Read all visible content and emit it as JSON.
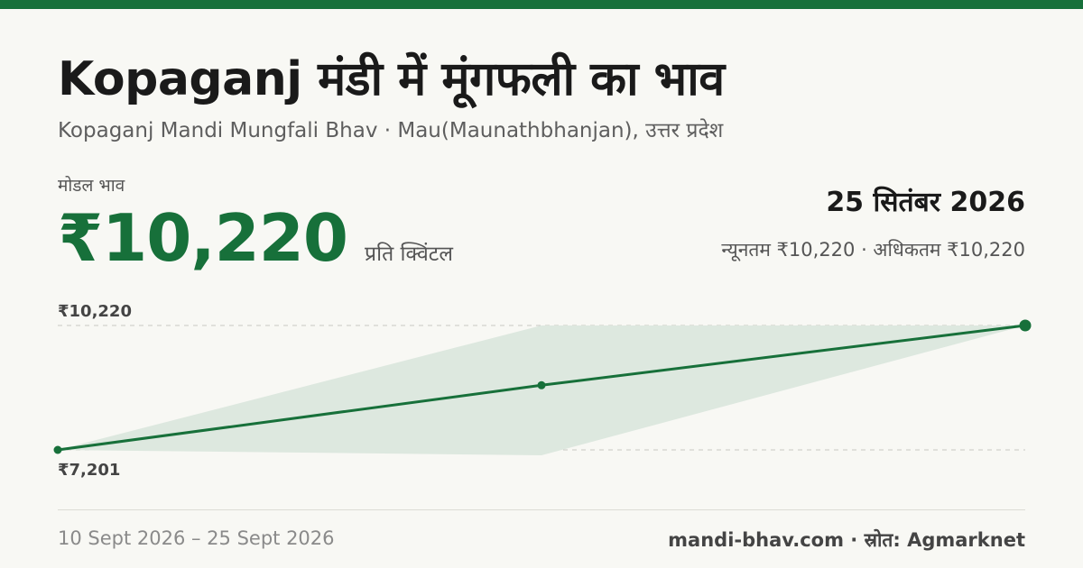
{
  "header": {
    "title": "Kopaganj मंडी में मूंगफली का भाव",
    "subtitle": "Kopaganj Mandi Mungfali Bhav · Mau(Maunathbhanjan), उत्तर प्रदेश"
  },
  "summary": {
    "modal_label": "मोडल भाव",
    "modal_price": "₹10,220",
    "unit": "प्रति क्विंटल",
    "date": "25 सितंबर 2026",
    "min_max": "न्यूनतम ₹10,220 · अधिकतम ₹10,220"
  },
  "footer": {
    "range": "10 Sept 2026 – 25 Sept 2026",
    "source": "mandi-bhav.com · स्रोत: Agmarknet"
  },
  "colors": {
    "accent": "#17703a",
    "band": "#dde8df",
    "background": "#f8f8f4"
  },
  "chart_data": {
    "type": "line",
    "title": "",
    "xlabel": "",
    "ylabel": "",
    "y_labels": {
      "top": "₹10,220",
      "bottom": "₹7,201"
    },
    "ylim": [
      7201,
      10220
    ],
    "grid": "dashed reference lines at top and bottom values",
    "series": [
      {
        "values": [
          7201,
          8770,
          10220
        ]
      }
    ],
    "band": {
      "min": [
        7201,
        7070,
        10220
      ],
      "max": [
        7201,
        10220,
        10220
      ]
    }
  }
}
